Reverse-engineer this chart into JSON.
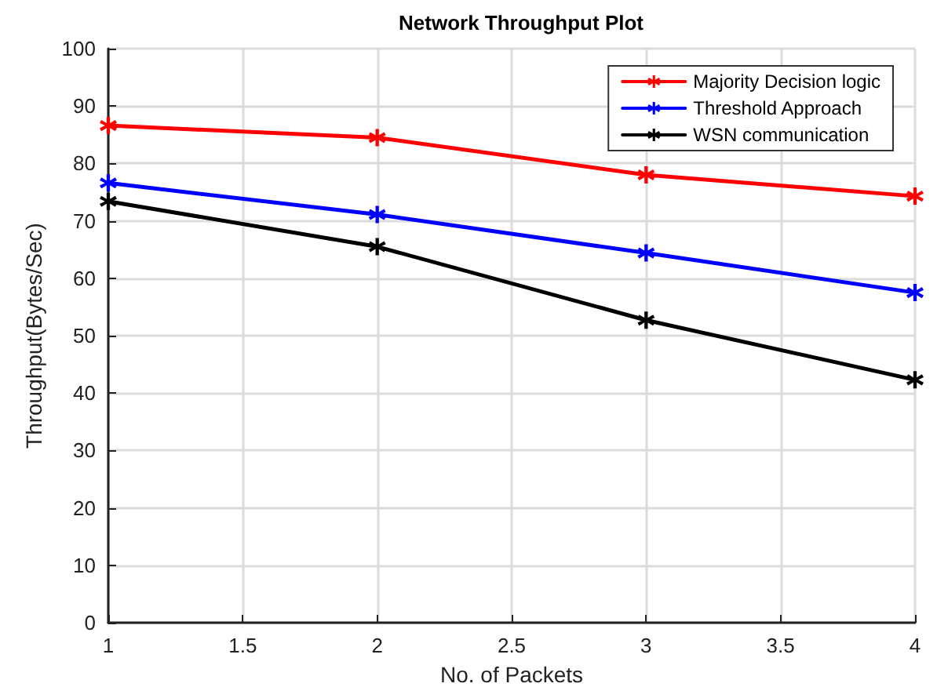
{
  "chart_data": {
    "type": "line",
    "title": "Network Throughput Plot",
    "xlabel": "No. of Packets",
    "ylabel": "Throughput(Bytes/Sec)",
    "x": [
      1,
      2,
      3,
      4
    ],
    "series": [
      {
        "name": "Majority Decision logic",
        "color": "#ff0000",
        "values": [
          86.6,
          84.5,
          78,
          74.3
        ]
      },
      {
        "name": "Threshold Approach",
        "color": "#0000ff",
        "values": [
          76.6,
          71.1,
          64.4,
          57.5
        ]
      },
      {
        "name": "WSN communication",
        "color": "#000000",
        "values": [
          73.4,
          65.5,
          52.7,
          42.3
        ]
      }
    ],
    "xlim": [
      1,
      4
    ],
    "xticks": [
      1,
      1.5,
      2,
      2.5,
      3,
      3.5,
      4
    ],
    "ylim": [
      0,
      100
    ],
    "yticks": [
      0,
      10,
      20,
      30,
      40,
      50,
      60,
      70,
      80,
      90,
      100
    ],
    "grid": true,
    "legend": "top right",
    "marker": "star",
    "line_style": "solid"
  }
}
